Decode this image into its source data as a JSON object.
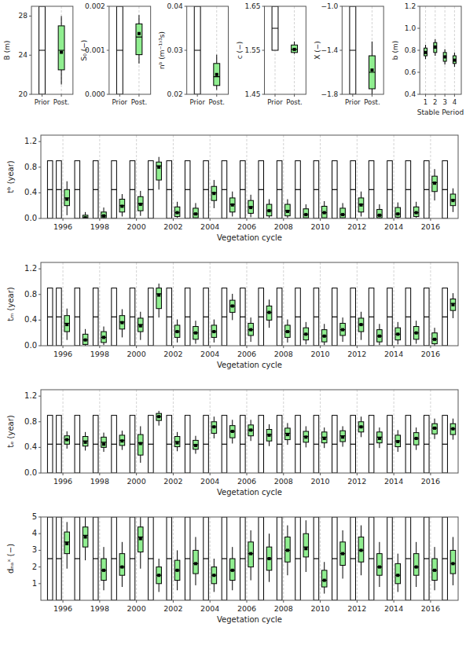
{
  "chart_data": [
    {
      "type": "box",
      "ylabel": "B (m)",
      "categories": [
        "Prior",
        "Post."
      ],
      "q1": [
        20,
        22.5
      ],
      "median": [
        24.5,
        24.5
      ],
      "q3": [
        29,
        27
      ],
      "whislo": [
        20,
        21
      ],
      "whishi": [
        29,
        28
      ],
      "dots": [
        null,
        24.3
      ],
      "colors": [
        "#FFFFFF",
        "#90EE90"
      ],
      "marker": "square",
      "ylim": [
        20,
        29
      ],
      "yticks": [
        20,
        24,
        28
      ],
      "grid": "x"
    },
    {
      "type": "box",
      "ylabel": "S₀ (−)",
      "categories": [
        "Prior",
        "Post."
      ],
      "q1": [
        0,
        0.0009
      ],
      "median": [
        0.001,
        0.0013
      ],
      "q3": [
        0.002,
        0.0016
      ],
      "whislo": [
        0,
        0.0007
      ],
      "whishi": [
        0.002,
        0.0018
      ],
      "dots": [
        null,
        0.00138
      ],
      "colors": [
        "#FFFFFF",
        "#90EE90"
      ],
      "marker": "square",
      "ylim": [
        0,
        0.002
      ],
      "yticks": [
        {
          "value": 0,
          "label": "0.000"
        },
        0.001,
        0.002
      ],
      "grid": "x"
    },
    {
      "type": "box",
      "ylabel": "nᵇ (m⁻¹ᶟ³s)",
      "categories": [
        "Prior",
        "Post."
      ],
      "q1": [
        0.02,
        0.022
      ],
      "median": [
        0.03,
        0.024
      ],
      "q3": [
        0.04,
        0.027
      ],
      "whislo": [
        0.02,
        0.021
      ],
      "whishi": [
        0.04,
        0.029
      ],
      "dots": [
        null,
        0.0245
      ],
      "colors": [
        "#FFFFFF",
        "#90EE90"
      ],
      "marker": "square",
      "ylim": [
        0.02,
        0.04
      ],
      "yticks": [
        0.02,
        0.03,
        0.04
      ],
      "grid": "x"
    },
    {
      "type": "box",
      "ylabel": "c (−)",
      "categories": [
        "Prior",
        "Post."
      ],
      "q1": [
        1.55,
        1.545
      ],
      "median": [
        1.6,
        1.552
      ],
      "q3": [
        1.65,
        1.562
      ],
      "whislo": [
        1.55,
        1.542
      ],
      "whishi": [
        1.65,
        1.57
      ],
      "dots": [
        null,
        1.552
      ],
      "colors": [
        "#FFFFFF",
        "#90EE90"
      ],
      "marker": "square",
      "ylim": [
        1.45,
        1.65
      ],
      "yticks": [
        1.45,
        1.55,
        1.65
      ],
      "grid": "x"
    },
    {
      "type": "box",
      "ylabel": "X (−)",
      "categories": [
        "Prior",
        "Post."
      ],
      "q1": [
        -1.8,
        -1.75
      ],
      "median": [
        -1.4,
        -1.6
      ],
      "q3": [
        -1,
        -1.45
      ],
      "whislo": [
        -1.8,
        -1.8
      ],
      "whishi": [
        -1,
        -1.32
      ],
      "dots": [
        null,
        -1.58
      ],
      "colors": [
        "#FFFFFF",
        "#90EE90"
      ],
      "marker": "square",
      "ylim": [
        -1.8,
        -1
      ],
      "yticks": [
        {
          "value": -1.8,
          "label": "−1.8"
        },
        {
          "value": -1.4,
          "label": "−1.4"
        },
        {
          "value": -1,
          "label": "−1.0"
        }
      ],
      "grid": "x"
    },
    {
      "type": "box",
      "ylabel": "b (m)",
      "xlabel": "Stable Period",
      "x": [
        1,
        2,
        3,
        4
      ],
      "q1": [
        0.75,
        0.78,
        0.7,
        0.68
      ],
      "median": [
        0.78,
        0.82,
        0.74,
        0.71
      ],
      "q3": [
        0.82,
        0.87,
        0.78,
        0.75
      ],
      "whislo": [
        0.72,
        0.75,
        0.67,
        0.65
      ],
      "whishi": [
        0.85,
        0.9,
        0.81,
        0.78
      ],
      "dots": [
        0.78,
        0.83,
        0.74,
        0.71
      ],
      "color": "#90EE90",
      "marker": "square",
      "xlim": [
        0.4,
        4.7
      ],
      "xticks": [
        1,
        2,
        3,
        4
      ],
      "ylim": [
        0.4,
        1.2
      ],
      "yticks": [
        0.4,
        0.6,
        0.8,
        {
          "value": 1,
          "label": "1.0"
        },
        1.2
      ],
      "grid": "x"
    },
    {
      "type": "box",
      "ylabel": "tᵇ (year)",
      "xlabel": "Vegetation cycle",
      "categories": [
        "1996",
        null,
        "1998",
        null,
        "2000",
        null,
        "2002",
        null,
        "2004",
        null,
        "2006",
        null,
        "2008",
        null,
        "2010",
        null,
        "2012",
        null,
        "2014",
        null,
        "2016",
        null
      ],
      "prior": {
        "color": "#FFFFFF",
        "q1": 0,
        "median": 0.45,
        "q3": 0.9,
        "whislo": 0,
        "whishi": 0.9
      },
      "q1": [
        0.2,
        0,
        0.01,
        0.1,
        0.12,
        0.6,
        0.03,
        0.01,
        0.28,
        0.1,
        0.08,
        0.04,
        0.04,
        0.01,
        0.01,
        0.01,
        0.1,
        0.01,
        0.02,
        0.03,
        0.42,
        0.2
      ],
      "median": [
        0.32,
        0.01,
        0.04,
        0.2,
        0.23,
        0.82,
        0.09,
        0.07,
        0.4,
        0.22,
        0.18,
        0.12,
        0.12,
        0.06,
        0.09,
        0.06,
        0.22,
        0.05,
        0.07,
        0.09,
        0.56,
        0.29
      ],
      "q3": [
        0.45,
        0.05,
        0.1,
        0.3,
        0.34,
        0.88,
        0.18,
        0.16,
        0.5,
        0.32,
        0.28,
        0.22,
        0.22,
        0.15,
        0.19,
        0.16,
        0.32,
        0.14,
        0.17,
        0.18,
        0.66,
        0.38
      ],
      "whislo": [
        0.05,
        0,
        0,
        0.03,
        0.04,
        0.45,
        0.01,
        0,
        0.16,
        0.03,
        0.02,
        0.01,
        0.01,
        0,
        0,
        0,
        0.03,
        0,
        0,
        0.01,
        0.28,
        0.1
      ],
      "whishi": [
        0.58,
        0.1,
        0.17,
        0.38,
        0.43,
        0.96,
        0.26,
        0.24,
        0.6,
        0.42,
        0.37,
        0.3,
        0.3,
        0.22,
        0.27,
        0.24,
        0.42,
        0.22,
        0.25,
        0.26,
        0.77,
        0.47
      ],
      "dots": [
        0.3,
        0.01,
        0.04,
        0.19,
        0.22,
        0.8,
        0.09,
        0.07,
        0.39,
        0.21,
        0.17,
        0.12,
        0.11,
        0.06,
        0.09,
        0.06,
        0.21,
        0.05,
        0.07,
        0.09,
        0.55,
        0.28
      ],
      "color": "#90EE90",
      "marker": "square",
      "ylim": [
        0,
        1.3
      ],
      "yticks": [
        {
          "value": 0,
          "label": "0.0"
        },
        0.4,
        0.8,
        1.2
      ],
      "grid": "x"
    },
    {
      "type": "box",
      "ylabel": "tₘ (year)",
      "xlabel": "Vegetation cycle",
      "categories": [
        "1996",
        null,
        "1998",
        null,
        "2000",
        null,
        "2002",
        null,
        "2004",
        null,
        "2006",
        null,
        "2008",
        null,
        "2010",
        null,
        "2012",
        null,
        "2014",
        null,
        "2016",
        null
      ],
      "prior": {
        "color": "#FFFFFF",
        "q1": 0,
        "median": 0.45,
        "q3": 0.9,
        "whislo": 0,
        "whishi": 0.9
      },
      "q1": [
        0.22,
        0.02,
        0.05,
        0.26,
        0.22,
        0.58,
        0.13,
        0.1,
        0.13,
        0.52,
        0.16,
        0.4,
        0.13,
        0.09,
        0.06,
        0.16,
        0.22,
        0.06,
        0.09,
        0.1,
        0.03,
        0.55
      ],
      "median": [
        0.35,
        0.09,
        0.13,
        0.37,
        0.33,
        0.81,
        0.22,
        0.2,
        0.22,
        0.62,
        0.25,
        0.52,
        0.22,
        0.18,
        0.15,
        0.25,
        0.33,
        0.15,
        0.18,
        0.2,
        0.1,
        0.66
      ],
      "q3": [
        0.47,
        0.18,
        0.22,
        0.47,
        0.43,
        0.9,
        0.32,
        0.3,
        0.32,
        0.71,
        0.35,
        0.62,
        0.32,
        0.28,
        0.25,
        0.35,
        0.43,
        0.25,
        0.28,
        0.3,
        0.2,
        0.73
      ],
      "whislo": [
        0.09,
        0,
        0.01,
        0.13,
        0.09,
        0.44,
        0.05,
        0.03,
        0.05,
        0.4,
        0.06,
        0.28,
        0.05,
        0.02,
        0.01,
        0.06,
        0.09,
        0.01,
        0.02,
        0.03,
        0,
        0.43
      ],
      "whishi": [
        0.58,
        0.26,
        0.3,
        0.57,
        0.53,
        0.97,
        0.41,
        0.39,
        0.41,
        0.81,
        0.44,
        0.72,
        0.41,
        0.37,
        0.34,
        0.44,
        0.53,
        0.34,
        0.37,
        0.39,
        0.28,
        0.82
      ],
      "dots": [
        0.33,
        0.09,
        0.13,
        0.36,
        0.31,
        0.79,
        0.22,
        0.2,
        0.22,
        0.62,
        0.25,
        0.52,
        0.22,
        0.18,
        0.15,
        0.25,
        0.33,
        0.15,
        0.18,
        0.2,
        0.1,
        0.64
      ],
      "color": "#90EE90",
      "marker": "square",
      "ylim": [
        0,
        1.3
      ],
      "yticks": [
        {
          "value": 0,
          "label": "0.0"
        },
        0.4,
        0.8,
        1.2
      ],
      "grid": "x"
    },
    {
      "type": "box",
      "ylabel": "tₑ (year)",
      "xlabel": "Vegetation cycle",
      "categories": [
        "1996",
        null,
        "1998",
        null,
        "2000",
        null,
        "2002",
        null,
        "2004",
        null,
        "2006",
        null,
        "2008",
        null,
        "2010",
        null,
        "2012",
        null,
        "2014",
        null,
        "2016",
        null
      ],
      "prior": {
        "color": "#FFFFFF",
        "q1": 0,
        "median": 0.45,
        "q3": 0.9,
        "whislo": 0,
        "whishi": 0.9
      },
      "q1": [
        0.45,
        0.42,
        0.4,
        0.43,
        0.28,
        0.82,
        0.41,
        0.37,
        0.62,
        0.55,
        0.58,
        0.5,
        0.52,
        0.48,
        0.47,
        0.49,
        0.64,
        0.47,
        0.41,
        0.44,
        0.61,
        0.6
      ],
      "median": [
        0.52,
        0.5,
        0.48,
        0.51,
        0.47,
        0.88,
        0.49,
        0.44,
        0.72,
        0.65,
        0.67,
        0.6,
        0.62,
        0.57,
        0.56,
        0.58,
        0.72,
        0.56,
        0.5,
        0.54,
        0.7,
        0.69
      ],
      "q3": [
        0.58,
        0.57,
        0.56,
        0.59,
        0.6,
        0.93,
        0.57,
        0.51,
        0.8,
        0.74,
        0.75,
        0.68,
        0.7,
        0.65,
        0.64,
        0.66,
        0.8,
        0.64,
        0.59,
        0.63,
        0.77,
        0.77
      ],
      "whislo": [
        0.38,
        0.35,
        0.33,
        0.36,
        0.16,
        0.74,
        0.34,
        0.3,
        0.54,
        0.46,
        0.5,
        0.42,
        0.44,
        0.4,
        0.39,
        0.41,
        0.56,
        0.39,
        0.33,
        0.36,
        0.53,
        0.52
      ],
      "whishi": [
        0.65,
        0.64,
        0.63,
        0.66,
        0.73,
        0.97,
        0.64,
        0.58,
        0.88,
        0.83,
        0.83,
        0.76,
        0.78,
        0.73,
        0.71,
        0.73,
        0.88,
        0.71,
        0.67,
        0.71,
        0.85,
        0.85
      ],
      "dots": [
        0.52,
        0.48,
        0.45,
        0.5,
        0.46,
        0.88,
        0.47,
        0.43,
        0.72,
        0.65,
        0.67,
        0.59,
        0.6,
        0.56,
        0.54,
        0.56,
        0.72,
        0.54,
        0.49,
        0.54,
        0.7,
        0.69
      ],
      "color": "#90EE90",
      "marker": "square",
      "ylim": [
        0,
        1.3
      ],
      "yticks": [
        {
          "value": 0,
          "label": "0.0"
        },
        0.4,
        0.8,
        1.2
      ],
      "grid": "x"
    },
    {
      "type": "box",
      "ylabel": "dₙₐˣ (−)",
      "xlabel": "Vegetation cycle",
      "categories": [
        "1996",
        null,
        "1998",
        null,
        "2000",
        null,
        "2002",
        null,
        "2004",
        null,
        "2006",
        null,
        "2008",
        null,
        "2010",
        null,
        "2012",
        null,
        "2014",
        null,
        "2016",
        null
      ],
      "prior": {
        "color": "#FFFFFF",
        "q1": 0,
        "median": 2.5,
        "q3": 5,
        "whislo": 0,
        "whishi": 5
      },
      "q1": [
        2.8,
        3.2,
        1.2,
        1.5,
        2.9,
        1.0,
        1.2,
        1.6,
        1.0,
        1.2,
        2.0,
        1.8,
        2.3,
        2.6,
        0.8,
        2.1,
        2.3,
        1.5,
        1.0,
        1.5,
        1.2,
        1.6
      ],
      "median": [
        3.5,
        3.9,
        1.8,
        2.0,
        3.8,
        1.5,
        1.8,
        2.2,
        1.5,
        1.8,
        2.8,
        2.5,
        3.0,
        3.2,
        1.2,
        2.8,
        3.0,
        2.0,
        1.5,
        2.0,
        1.8,
        2.2
      ],
      "q3": [
        4.1,
        4.4,
        2.5,
        2.8,
        4.4,
        2.0,
        2.4,
        3.0,
        2.0,
        2.5,
        3.5,
        3.2,
        3.8,
        4.0,
        1.8,
        3.5,
        3.8,
        2.8,
        2.2,
        2.8,
        2.5,
        3.0
      ],
      "whislo": [
        1.9,
        2.4,
        0.6,
        0.8,
        1.9,
        0.5,
        0.6,
        0.9,
        0.5,
        0.6,
        1.2,
        1.1,
        1.5,
        1.7,
        0.4,
        1.3,
        1.5,
        0.8,
        0.5,
        0.8,
        0.6,
        0.9
      ],
      "whishi": [
        4.7,
        5.0,
        3.2,
        3.5,
        5.0,
        2.5,
        3.0,
        3.8,
        2.5,
        3.2,
        4.2,
        4.0,
        4.5,
        4.8,
        2.3,
        4.2,
        4.5,
        3.5,
        2.8,
        3.5,
        3.2,
        3.8
      ],
      "dots": [
        3.4,
        3.8,
        1.8,
        2.0,
        3.7,
        1.5,
        1.8,
        2.2,
        1.5,
        1.8,
        2.8,
        2.5,
        3.0,
        3.1,
        1.2,
        2.8,
        3.0,
        2.0,
        1.5,
        2.0,
        1.8,
        2.2
      ],
      "color": "#90EE90",
      "marker": "square",
      "ylim": [
        0,
        5
      ],
      "yticks": [
        1,
        2,
        3,
        4,
        5
      ],
      "grid": "x"
    }
  ]
}
